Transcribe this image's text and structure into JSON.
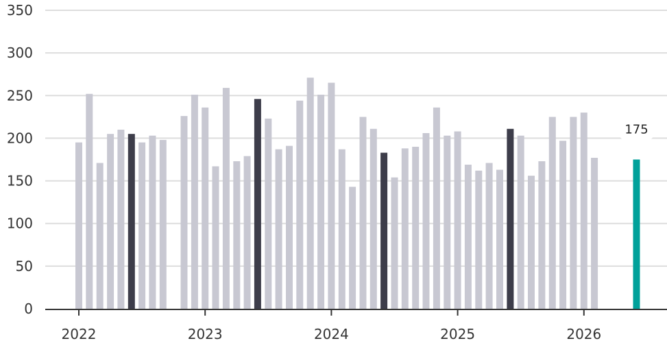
{
  "chart_data": {
    "type": "bar",
    "title": "",
    "xlabel": "",
    "ylabel": "",
    "ylim": [
      0,
      350
    ],
    "yticks": [
      0,
      50,
      100,
      150,
      200,
      250,
      300,
      350
    ],
    "xticks": [
      "2022",
      "2023",
      "2024",
      "2025",
      "2026"
    ],
    "grid": true,
    "colors": {
      "default": "#c8c8d2",
      "highlight": "#3d3d4a",
      "latest": "#00a19a",
      "grid": "#dddddd",
      "axis": "#333333"
    },
    "series": [
      {
        "values": [
          195,
          252,
          171,
          205,
          210,
          205,
          195,
          203,
          198,
          226,
          251,
          236,
          167,
          259,
          173,
          179,
          246,
          223,
          187,
          191,
          244,
          271,
          251,
          265,
          187,
          143,
          225,
          211,
          183,
          154,
          188,
          190,
          206,
          236,
          203,
          208,
          169,
          162,
          171,
          163,
          211,
          203,
          156,
          173,
          225,
          197,
          225,
          230,
          177,
          175
        ]
      }
    ],
    "dates": [
      "2022-01",
      "2022-02",
      "2022-03",
      "2022-04",
      "2022-05",
      "2022-06",
      "2022-07",
      "2022-08",
      "2022-09",
      "2022-11",
      "2022-12",
      "2023-01",
      "2023-02",
      "2023-03",
      "2023-04",
      "2023-05",
      "2023-06",
      "2023-07",
      "2023-08",
      "2023-09",
      "2023-10",
      "2023-11",
      "2023-12",
      "2024-01",
      "2024-02",
      "2024-03",
      "2024-04",
      "2024-05",
      "2024-06",
      "2024-07",
      "2024-08",
      "2024-09",
      "2024-10",
      "2024-11",
      "2024-12",
      "2025-01",
      "2025-02",
      "2025-03",
      "2025-04",
      "2025-05",
      "2025-06",
      "2025-07",
      "2025-08",
      "2025-09",
      "2025-10",
      "2025-11",
      "2025-12",
      "2026-01",
      "2026-02",
      "2026-06"
    ],
    "highlighted": [
      "2022-06",
      "2023-06",
      "2024-06",
      "2025-06"
    ],
    "latest": {
      "date": "2026-06",
      "value": 175,
      "label": "175"
    }
  }
}
